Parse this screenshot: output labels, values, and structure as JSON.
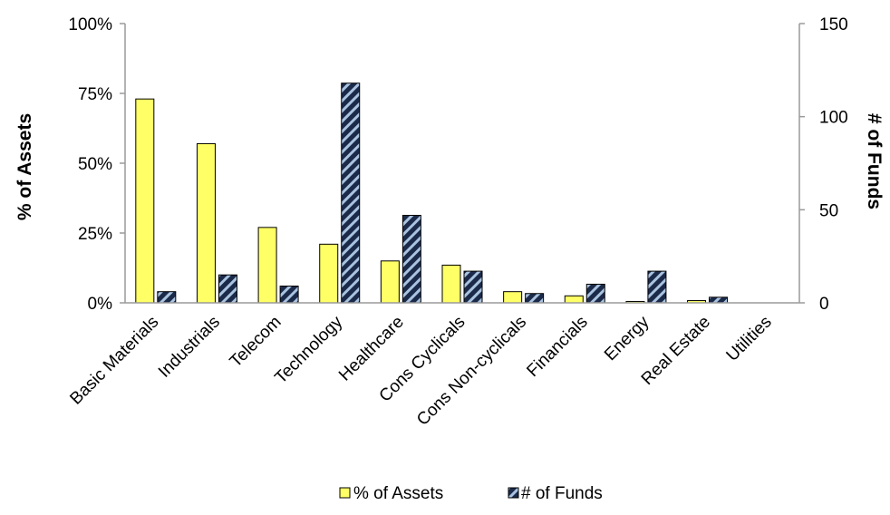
{
  "chart_data": {
    "type": "bar",
    "title": "",
    "xlabel": "",
    "ylabel": "% of Assets",
    "y2label": "# of Funds",
    "categories": [
      "Basic Materials",
      "Industrials",
      "Telecom",
      "Technology",
      "Healthcare",
      "Cons Cyclicals",
      "Cons Non-cyclicals",
      "Financials",
      "Energy",
      "Real Estate",
      "Utilities"
    ],
    "series": [
      {
        "name": "% of Assets",
        "axis": "left",
        "color": "#ffff66",
        "pattern": "solid",
        "values": [
          73,
          57,
          27,
          21,
          15,
          13.5,
          4,
          2.5,
          0.5,
          0.8,
          0
        ]
      },
      {
        "name": "# of Funds",
        "axis": "right",
        "color": "#1c2a4a",
        "pattern": "diagonal-hatch",
        "values": [
          6,
          15,
          9,
          118,
          47,
          17,
          5,
          10,
          17,
          3,
          0
        ]
      }
    ],
    "ylim": [
      0,
      100
    ],
    "y_ticks": [
      "0%",
      "25%",
      "50%",
      "75%",
      "100%"
    ],
    "y2lim": [
      0,
      150
    ],
    "y2_ticks": [
      "0",
      "50",
      "100",
      "150"
    ],
    "legend": "bottom",
    "grid": false
  }
}
